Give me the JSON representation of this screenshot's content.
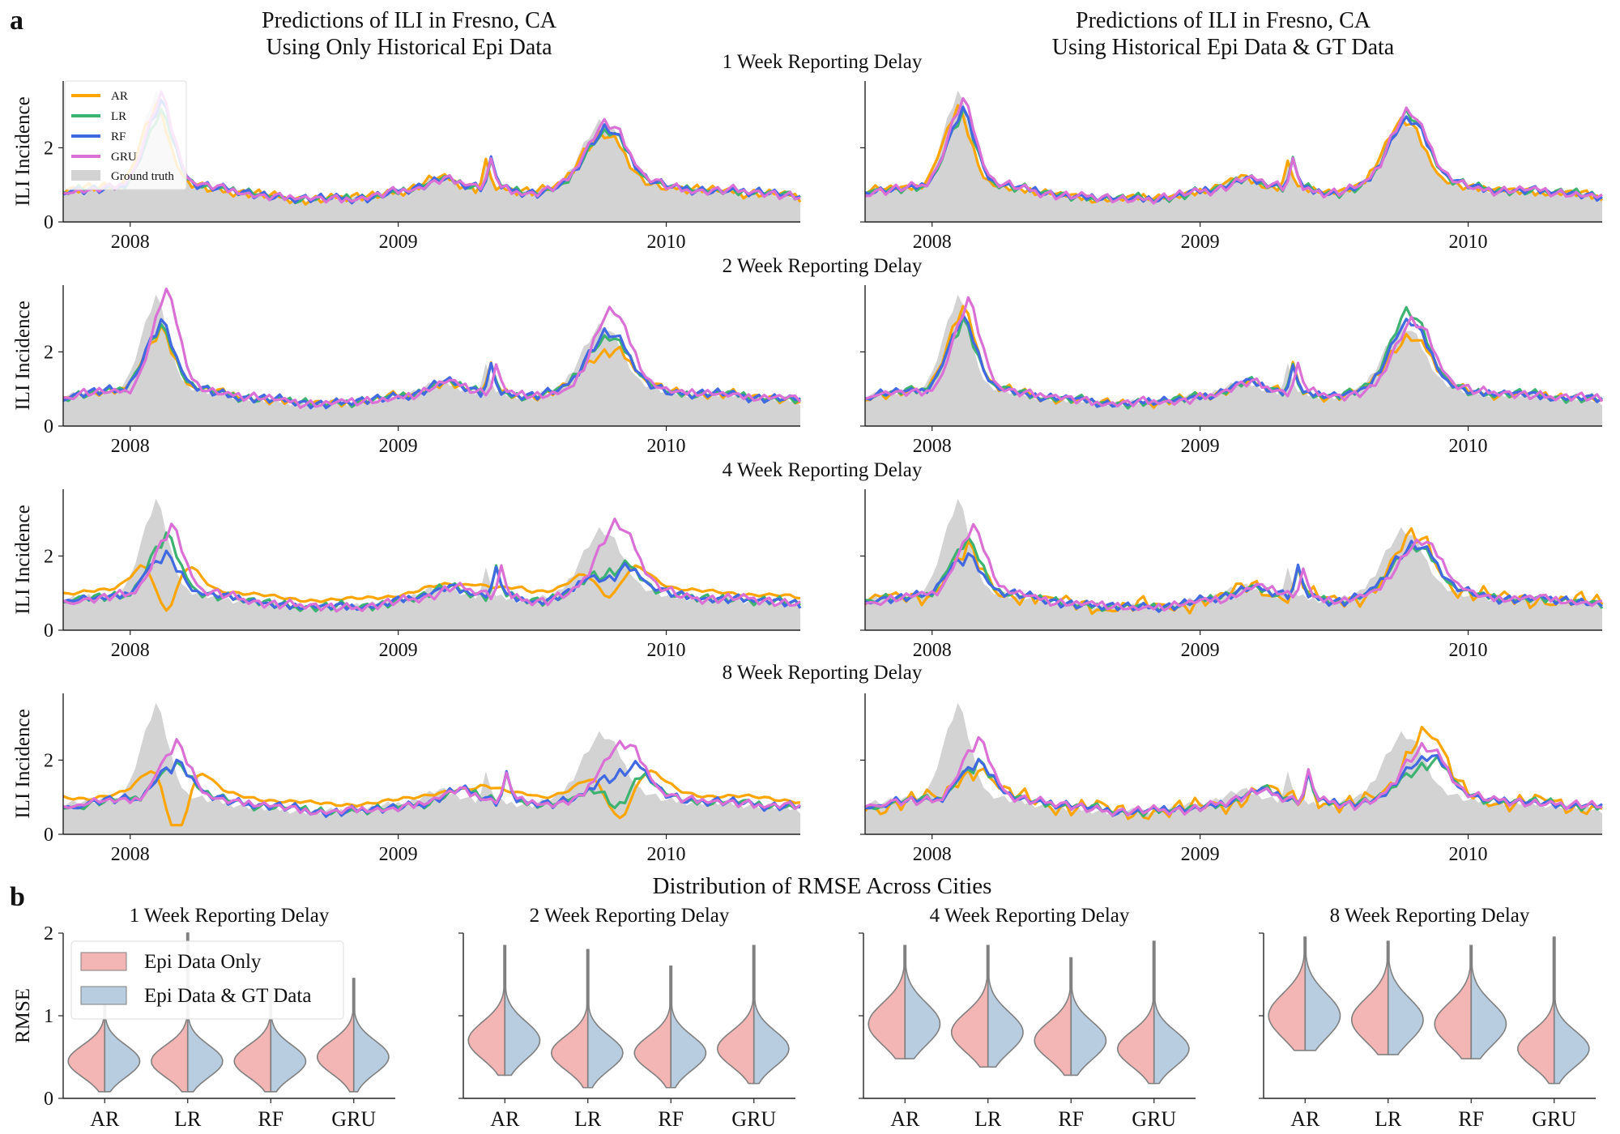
{
  "panel_labels": {
    "a": "a",
    "b": "b"
  },
  "titles": {
    "left": [
      "Predictions of ILI in Fresno, CA",
      "Using Only Historical Epi Data"
    ],
    "right": [
      "Predictions of ILI in Fresno, CA",
      "Using Historical Epi Data & GT Data"
    ],
    "section_b": "Distribution of RMSE Across Cities"
  },
  "colors": {
    "AR": "#ffa500",
    "LR": "#3cb371",
    "RF": "#4169e1",
    "GRU": "#da70d6",
    "ground_truth": "#d3d3d3",
    "epi_only": "#f4b6b4",
    "epi_gt": "#b8cde0",
    "violin_edge": "#808080"
  },
  "chart_data": [
    {
      "type": "line",
      "panel": "a",
      "row_titles": [
        "1 Week Reporting Delay",
        "2 Week Reporting Delay",
        "4 Week Reporting Delay",
        "8 Week Reporting Delay"
      ],
      "ylabel": "ILI Incidence",
      "ylim": [
        0,
        3.8
      ],
      "yticks": [
        0,
        2
      ],
      "xlim": [
        2007.75,
        2010.5
      ],
      "xticks": [
        "2008",
        "2009",
        "2010"
      ],
      "legend": {
        "placement": "top-left",
        "entries": [
          "AR",
          "LR",
          "RF",
          "GRU",
          "Ground truth"
        ]
      },
      "ground_truth": {
        "name": "Ground truth",
        "x": [
          2007.75,
          2007.85,
          2007.95,
          2008.0,
          2008.05,
          2008.1,
          2008.15,
          2008.2,
          2008.3,
          2008.5,
          2008.7,
          2008.9,
          2009.05,
          2009.15,
          2009.25,
          2009.3,
          2009.33,
          2009.36,
          2009.4,
          2009.5,
          2009.6,
          2009.65,
          2009.7,
          2009.75,
          2009.8,
          2009.85,
          2009.9,
          2010.0,
          2010.2,
          2010.4,
          2010.5
        ],
        "y": [
          0.85,
          0.9,
          0.95,
          1.4,
          2.6,
          3.6,
          2.2,
          1.1,
          0.9,
          0.7,
          0.6,
          0.7,
          0.9,
          1.2,
          1.0,
          0.9,
          1.7,
          0.9,
          0.85,
          0.8,
          1.0,
          1.5,
          2.2,
          2.7,
          2.5,
          1.8,
          1.2,
          0.9,
          0.85,
          0.75,
          0.65
        ]
      },
      "predictions": [
        {
          "delay": "1 Week Reporting Delay",
          "model_set": "Epi Data Only",
          "peaks": {
            "AR": [
              3.2,
              2.4
            ],
            "LR": [
              3.0,
              2.5
            ],
            "RF": [
              3.3,
              2.6
            ],
            "GRU": [
              3.5,
              2.8
            ]
          }
        },
        {
          "delay": "1 Week Reporting Delay",
          "model_set": "Epi Data & GT Data",
          "peaks": {
            "AR": [
              3.1,
              2.8
            ],
            "LR": [
              3.0,
              3.0
            ],
            "RF": [
              3.1,
              2.9
            ],
            "GRU": [
              3.4,
              3.1
            ]
          }
        },
        {
          "delay": "2 Week Reporting Delay",
          "model_set": "Epi Data Only",
          "peaks": {
            "AR": [
              2.7,
              2.1
            ],
            "LR": [
              2.8,
              2.5
            ],
            "RF": [
              2.9,
              2.6
            ],
            "GRU": [
              3.7,
              3.2
            ]
          }
        },
        {
          "delay": "2 Week Reporting Delay",
          "model_set": "Epi Data & GT Data",
          "peaks": {
            "AR": [
              3.3,
              2.5
            ],
            "LR": [
              2.9,
              3.2
            ],
            "RF": [
              3.0,
              2.9
            ],
            "GRU": [
              3.4,
              2.9
            ]
          }
        },
        {
          "delay": "4 Week Reporting Delay",
          "model_set": "Epi Data Only",
          "peaks": {
            "AR": [
              1.7,
              1.4
            ],
            "LR": [
              2.6,
              1.6
            ],
            "RF": [
              2.1,
              1.5
            ],
            "GRU": [
              2.9,
              3.0
            ]
          }
        },
        {
          "delay": "4 Week Reporting Delay",
          "model_set": "Epi Data & GT Data",
          "peaks": {
            "AR": [
              2.2,
              2.6
            ],
            "LR": [
              2.5,
              2.3
            ],
            "RF": [
              2.1,
              2.4
            ],
            "GRU": [
              2.9,
              2.5
            ]
          }
        },
        {
          "delay": "8 Week Reporting Delay",
          "model_set": "Epi Data Only",
          "peaks": {
            "AR": [
              1.2,
              1.0
            ],
            "LR": [
              2.0,
              0.9
            ],
            "RF": [
              2.0,
              1.7
            ],
            "GRU": [
              2.5,
              2.5
            ]
          }
        },
        {
          "delay": "8 Week Reporting Delay",
          "model_set": "Epi Data & GT Data",
          "peaks": {
            "AR": [
              1.9,
              2.9
            ],
            "LR": [
              2.0,
              1.9
            ],
            "RF": [
              2.0,
              2.1
            ],
            "GRU": [
              2.6,
              2.4
            ]
          }
        }
      ]
    },
    {
      "type": "violin",
      "panel": "b",
      "title": "Distribution of RMSE Across Cities",
      "ylabel": "RMSE",
      "ylim": [
        0,
        2
      ],
      "yticks": [
        0,
        1,
        2
      ],
      "categories": [
        "AR",
        "LR",
        "RF",
        "GRU"
      ],
      "legend": {
        "placement": "top-left",
        "entries": [
          "Epi Data Only",
          "Epi Data & GT Data"
        ]
      },
      "subplots": [
        {
          "title": "1 Week Reporting Delay",
          "medians": [
            0.45,
            0.45,
            0.45,
            0.5
          ],
          "max": [
            1.15,
            2.0,
            1.3,
            1.45
          ]
        },
        {
          "title": "2 Week Reporting Delay",
          "medians": [
            0.7,
            0.55,
            0.55,
            0.6
          ],
          "max": [
            1.85,
            1.8,
            1.6,
            1.85
          ]
        },
        {
          "title": "4 Week Reporting Delay",
          "medians": [
            0.9,
            0.8,
            0.7,
            0.6
          ],
          "max": [
            1.85,
            1.85,
            1.7,
            1.9
          ]
        },
        {
          "title": "8 Week Reporting Delay",
          "medians": [
            1.0,
            0.95,
            0.9,
            0.6
          ],
          "max": [
            1.95,
            1.9,
            1.85,
            1.95
          ]
        }
      ]
    }
  ]
}
